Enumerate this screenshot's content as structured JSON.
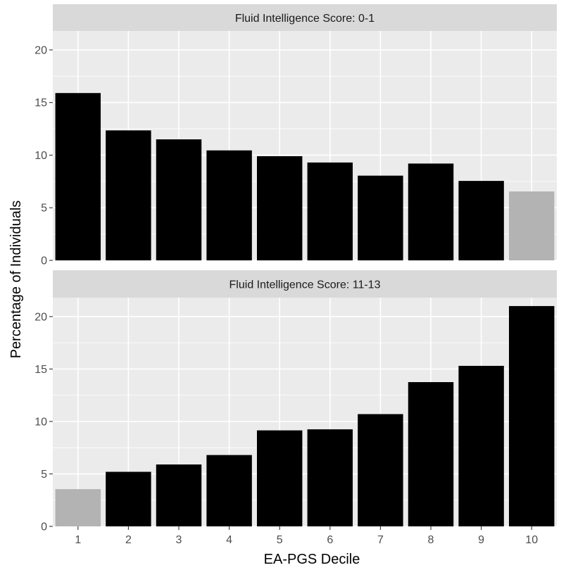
{
  "chart_data": {
    "type": "bar",
    "xlabel": "EA-PGS Decile",
    "ylabel": "Percentage of Individuals",
    "categories": [
      "1",
      "2",
      "3",
      "4",
      "5",
      "6",
      "7",
      "8",
      "9",
      "10"
    ],
    "y_ticks": [
      "0",
      "5",
      "10",
      "15",
      "20"
    ],
    "ylim": [
      0,
      21.8
    ],
    "grid": true,
    "colors": {
      "default": "#000000",
      "highlight": "#b3b3b3",
      "panel": "#ebebeb",
      "strip": "#d9d9d9",
      "grid": "#ffffff"
    },
    "panels": [
      {
        "title": "Fluid Intelligence Score: 0-1",
        "values": [
          15.9,
          12.35,
          11.5,
          10.45,
          9.9,
          9.3,
          8.05,
          9.2,
          7.55,
          6.55
        ],
        "highlight_index": 9
      },
      {
        "title": "Fluid Intelligence Score: 11-13",
        "values": [
          3.55,
          5.2,
          5.9,
          6.8,
          9.15,
          9.25,
          10.7,
          13.75,
          15.3,
          21.0
        ],
        "highlight_index": 0
      }
    ]
  }
}
